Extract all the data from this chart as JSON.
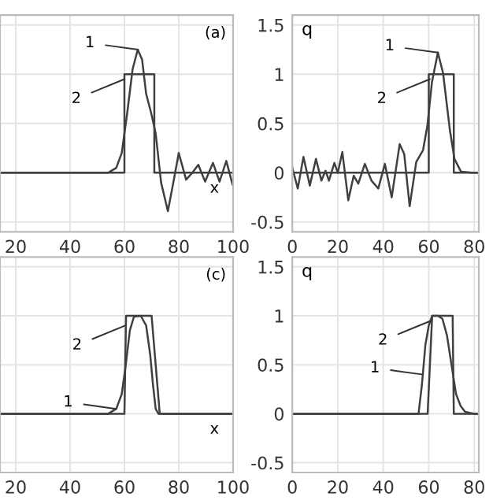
{
  "chart_data": [
    {
      "type": "line",
      "title": "(a)",
      "xlabel": "x",
      "xlim": [
        14.2,
        100
      ],
      "xticks": [
        20,
        40,
        60,
        80,
        100
      ],
      "ylim": [
        -0.6,
        1.6
      ],
      "yticks": [
        -0.5,
        0,
        0.5,
        1,
        1.5
      ],
      "tick_labels": "x",
      "grid": true,
      "marker": "none",
      "line_style": "solid",
      "series": [
        {
          "color": "#404040",
          "x": [
            14.2,
            50,
            54,
            57,
            59,
            61,
            63,
            64.9,
            66.5,
            68,
            69.8,
            71.5,
            73.5,
            76,
            78,
            80,
            82.7,
            85,
            87.2,
            89.7,
            92.6,
            95,
            97.5,
            99.8
          ],
          "values": [
            0,
            0,
            0,
            0.05,
            0.2,
            0.6,
            1.05,
            1.25,
            1.15,
            0.8,
            0.61,
            0.4,
            -0.1,
            -0.39,
            -0.1,
            0.2,
            -0.07,
            0.0,
            0.08,
            -0.09,
            0.1,
            -0.09,
            0.12,
            -0.12
          ]
        },
        {
          "color": "#404040",
          "x": [
            14.2,
            60,
            60,
            71,
            71,
            100
          ],
          "values": [
            0,
            0,
            1,
            1,
            0,
            0
          ]
        }
      ],
      "annotations": [
        {
          "text": "1",
          "x": 65,
          "y": 1.25
        },
        {
          "text": "2",
          "x": 60,
          "y": 0.95
        }
      ]
    },
    {
      "type": "line",
      "ylabel": "q",
      "xlim": [
        0,
        82
      ],
      "xticks": [
        0,
        20,
        40,
        60,
        80
      ],
      "ylim": [
        -0.6,
        1.6
      ],
      "yticks": [
        -0.5,
        0,
        0.5,
        1,
        1.5
      ],
      "grid": true,
      "marker": "none",
      "line_style": "solid",
      "series": [
        {
          "color": "#404040",
          "x": [
            0,
            2.4,
            4.9,
            7.7,
            10.4,
            12.8,
            14.6,
            16.1,
            18.5,
            20,
            22,
            24.6,
            27,
            29,
            31.9,
            34.8,
            37.8,
            40.7,
            43.7,
            47.2,
            49.2,
            51.6,
            54.5,
            57.5,
            59.4,
            61.4,
            64,
            66.3,
            69.3,
            71.3,
            74.2,
            79,
            82
          ],
          "values": [
            0.05,
            -0.16,
            0.16,
            -0.13,
            0.14,
            -0.08,
            0.02,
            -0.08,
            0.1,
            0,
            0.21,
            -0.28,
            -0.03,
            -0.11,
            0.09,
            -0.08,
            -0.16,
            0.09,
            -0.25,
            0.29,
            0.19,
            -0.34,
            0.11,
            0.23,
            0.48,
            0.92,
            1.22,
            1.01,
            0.43,
            0.14,
            0.01,
            0,
            0
          ]
        },
        {
          "color": "#404040",
          "x": [
            0,
            60,
            60,
            71,
            71,
            82
          ],
          "values": [
            0,
            0,
            1,
            1,
            0,
            0
          ]
        }
      ],
      "annotations": [
        {
          "text": "1",
          "x": 64,
          "y": 1.22
        },
        {
          "text": "2",
          "x": 60.5,
          "y": 0.95
        }
      ]
    },
    {
      "type": "line",
      "title": "(c)",
      "xlabel": "x",
      "xlim": [
        14.2,
        100
      ],
      "xticks": [
        20,
        40,
        60,
        80,
        100
      ],
      "ylim": [
        -0.6,
        1.6
      ],
      "yticks": [
        -0.5,
        0,
        0.5,
        1,
        1.5
      ],
      "tick_labels": "x",
      "grid": true,
      "marker": "none",
      "line_style": "solid",
      "series": [
        {
          "color": "#404040",
          "x": [
            14.2,
            54,
            57,
            59,
            60.5,
            62,
            63.5,
            66,
            68,
            69.5,
            70.5,
            71.5,
            72.5,
            100
          ],
          "values": [
            0,
            0,
            0.05,
            0.2,
            0.5,
            0.85,
            0.99,
            1,
            0.9,
            0.6,
            0.3,
            0.05,
            0,
            0
          ]
        },
        {
          "color": "#404040",
          "x": [
            14.2,
            60,
            60.6,
            70,
            73,
            100
          ],
          "values": [
            0,
            0,
            1,
            1,
            0,
            0
          ]
        }
      ],
      "annotations": [
        {
          "text": "1",
          "x": 57,
          "y": 0.05
        },
        {
          "text": "2",
          "x": 60.3,
          "y": 0.9
        }
      ]
    },
    {
      "type": "line",
      "ylabel": "q",
      "xlim": [
        0,
        82
      ],
      "xticks": [
        0,
        20,
        40,
        60,
        80
      ],
      "ylim": [
        -0.6,
        1.6
      ],
      "yticks": [
        -0.5,
        0,
        0.5,
        1,
        1.5
      ],
      "grid": true,
      "marker": "none",
      "line_style": "solid",
      "series": [
        {
          "color": "#404040",
          "x": [
            0,
            55.5,
            57,
            58.5,
            60,
            61.5,
            64,
            66,
            68,
            70,
            72,
            74,
            76,
            80,
            82
          ],
          "values": [
            0,
            0,
            0.3,
            0.7,
            0.9,
            1,
            1,
            0.97,
            0.8,
            0.5,
            0.2,
            0.08,
            0.02,
            0,
            0
          ]
        },
        {
          "color": "#404040",
          "x": [
            0,
            59.5,
            61.5,
            70.5,
            71,
            82
          ],
          "values": [
            0,
            0,
            1,
            1,
            0,
            0
          ]
        }
      ],
      "annotations": [
        {
          "text": "1",
          "x": 57.5,
          "y": 0.4
        },
        {
          "text": "2",
          "x": 61,
          "y": 0.95
        }
      ]
    }
  ]
}
